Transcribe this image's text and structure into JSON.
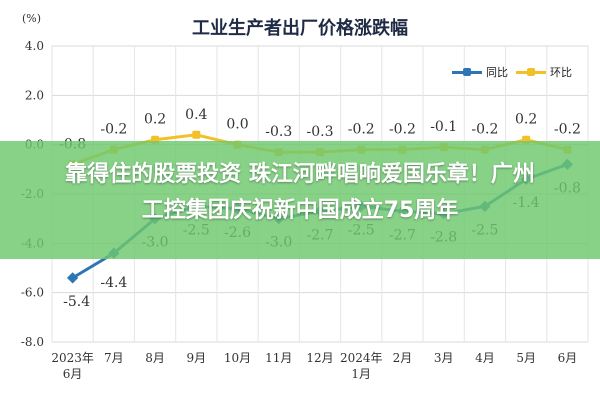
{
  "chart_data": {
    "type": "line",
    "title": "工业生产者出厂价格涨跌幅",
    "unit_label": "(%)",
    "categories": [
      "2023年\n6月",
      "7月",
      "8月",
      "9月",
      "10月",
      "11月",
      "12月",
      "2024年\n1月",
      "2月",
      "3月",
      "4月",
      "5月",
      "6月"
    ],
    "series": [
      {
        "name": "同比",
        "color": "#2e75b6",
        "values": [
          -5.4,
          -4.4,
          -3.0,
          -2.5,
          -2.6,
          -3.0,
          -2.7,
          -2.5,
          -2.7,
          -2.8,
          -2.5,
          -1.4,
          -0.8
        ]
      },
      {
        "name": "环比",
        "color": "#f2c029",
        "values": [
          -0.8,
          -0.2,
          0.2,
          0.4,
          0.0,
          -0.3,
          -0.3,
          -0.2,
          -0.2,
          -0.1,
          -0.2,
          0.2,
          -0.2
        ]
      }
    ],
    "ylim": [
      -8.0,
      4.0
    ],
    "yticks": [
      "4.0",
      "2.0",
      "0.0",
      "-2.0",
      "-4.0",
      "-6.0",
      "-8.0"
    ],
    "labels_yoy": [
      "-5.4",
      "-4.4",
      "-3.0",
      "-2.5",
      "-2.6",
      "-3.0",
      "-2.7",
      "-2.5",
      "-2.7",
      "-2.8",
      "-2.5",
      "-1.4",
      "-0.8"
    ],
    "labels_mom": [
      "-0.8",
      "-0.2",
      "0.2",
      "0.4",
      "0.0",
      "-0.3",
      "-0.3",
      "-0.2",
      "-0.2",
      "-0.1",
      "-0.2",
      "0.2",
      "-0.2"
    ],
    "grid": true,
    "legend_position": "top-right"
  },
  "overlay": {
    "line1": "靠得住的股票投资 珠江河畔唱响爱国乐章！广州",
    "line2": "工控集团庆祝新中国成立75周年"
  }
}
